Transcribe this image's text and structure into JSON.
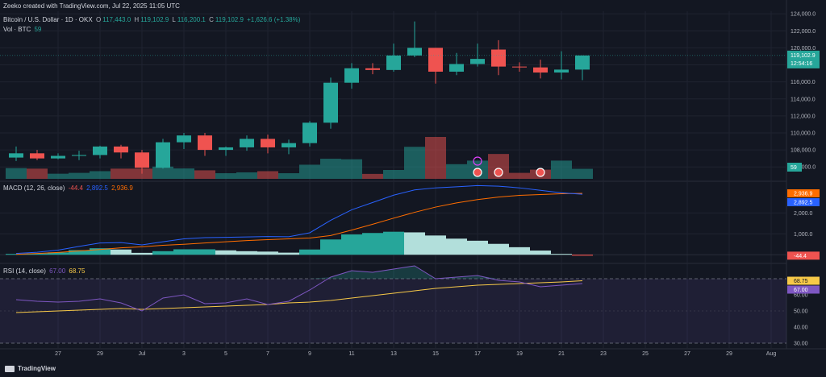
{
  "header": {
    "attribution": "Zeeko created with TradingView.com, Jul 22, 2025 11:05 UTC",
    "symbol": "Bitcoin / U.S. Dollar · 1D · OKX",
    "o_label": "O",
    "o_value": "117,443.0",
    "h_label": "H",
    "h_value": "119,102.9",
    "l_label": "L",
    "l_value": "116,200.1",
    "c_label": "C",
    "c_value": "119,102.9",
    "change": "+1,626.6 (+1.38%)",
    "vol_label": "Vol · BTC",
    "vol_value": "59"
  },
  "macd_header": {
    "label": "MACD (12, 26, close)",
    "v1": "-44.4",
    "v2": "2,892.5",
    "v3": "2,936.9"
  },
  "rsi_header": {
    "label": "RSI (14, close)",
    "v1": "67.00",
    "v2": "68.75"
  },
  "footer": {
    "brand": "TradingView"
  },
  "colors": {
    "up": "#26a69a",
    "down": "#ef5350",
    "macd": "#2962ff",
    "signal": "#ff6d00",
    "rsi": "#7e57c2",
    "rsi_ma": "#f7c948",
    "bg": "#131722"
  },
  "chart_data": [
    {
      "type": "candlestick",
      "title": "Bitcoin / U.S. Dollar · 1D · OKX",
      "x_tick_labels": [
        "27",
        "29",
        "Jul",
        "3",
        "5",
        "7",
        "9",
        "11",
        "13",
        "15",
        "17",
        "19",
        "21",
        "23",
        "25",
        "27",
        "29",
        "Aug"
      ],
      "y_ticks": [
        106000,
        108000,
        110000,
        112000,
        114000,
        116000,
        118000,
        120000,
        122000,
        124000
      ],
      "y_tick_labels": [
        "106,000.0",
        "108,000.0",
        "110,000.0",
        "112,000.0",
        "114,000.0",
        "116,000.0",
        "118,000.0",
        "120,000.0",
        "122,000.0",
        "124,000.0"
      ],
      "ylim": [
        104600,
        124300
      ],
      "last_price_label": "119,102.9",
      "countdown_label": "12:54:16",
      "volume_label": "59",
      "dates": [
        "Jun 25",
        "Jun 26",
        "Jun 27",
        "Jun 28",
        "Jun 29",
        "Jun 30",
        "Jul 1",
        "Jul 2",
        "Jul 3",
        "Jul 4",
        "Jul 5",
        "Jul 6",
        "Jul 7",
        "Jul 8",
        "Jul 9",
        "Jul 10",
        "Jul 11",
        "Jul 12",
        "Jul 13",
        "Jul 14",
        "Jul 15",
        "Jul 16",
        "Jul 17",
        "Jul 18",
        "Jul 19",
        "Jul 20",
        "Jul 21",
        "Jul 22"
      ],
      "open": [
        107100,
        107600,
        107000,
        107300,
        107400,
        108400,
        107700,
        105900,
        108900,
        109700,
        108000,
        108300,
        109300,
        108300,
        108800,
        111200,
        115900,
        117600,
        117400,
        119100,
        120000,
        117200,
        118100,
        119800,
        117800,
        117700,
        117100,
        117443
      ],
      "high": [
        108400,
        108000,
        107600,
        107900,
        108500,
        108600,
        108000,
        109300,
        110000,
        110000,
        108400,
        109700,
        109800,
        109200,
        111400,
        116500,
        118200,
        118200,
        120500,
        123100,
        120000,
        119400,
        120500,
        120900,
        118300,
        118600,
        119600,
        119103
      ],
      "low": [
        106700,
        106800,
        106900,
        106800,
        107000,
        107000,
        105200,
        105800,
        108100,
        107300,
        107300,
        107900,
        107600,
        107500,
        108400,
        110500,
        115200,
        116900,
        117200,
        118900,
        115800,
        116800,
        117800,
        116800,
        117200,
        116400,
        116300,
        116200
      ],
      "close": [
        107600,
        107000,
        107300,
        107400,
        108400,
        107700,
        105900,
        108900,
        109700,
        108000,
        108300,
        109300,
        108300,
        108800,
        111200,
        115900,
        117600,
        117400,
        119100,
        120000,
        117200,
        118100,
        118700,
        117800,
        117700,
        117100,
        117443,
        119103
      ],
      "volume": [
        6.3,
        6.0,
        3.0,
        3.5,
        4.5,
        6.0,
        6.0,
        7.2,
        6.1,
        5.0,
        3.3,
        3.8,
        4.5,
        3.3,
        8.3,
        11.8,
        11.5,
        2.9,
        5.2,
        18.8,
        24.6,
        8.6,
        10.7,
        14.6,
        3.5,
        5.4,
        10.7,
        5.9
      ]
    },
    {
      "type": "line+histogram",
      "title": "MACD (12, 26, close)",
      "y_tick_labels": [
        "1,000.0",
        "2,000.0"
      ],
      "y_ticks": [
        1000,
        2000
      ],
      "ylim": [
        -300,
        3400
      ],
      "series": [
        {
          "name": "MACD",
          "values": [
            60,
            120,
            220,
            400,
            560,
            580,
            470,
            620,
            760,
            820,
            830,
            850,
            870,
            860,
            1050,
            1650,
            2150,
            2500,
            2850,
            3100,
            3200,
            3250,
            3310,
            3280,
            3200,
            3080,
            2960,
            2892.5
          ]
        },
        {
          "name": "Signal",
          "values": [
            20,
            60,
            110,
            180,
            250,
            330,
            380,
            450,
            500,
            560,
            620,
            680,
            720,
            760,
            800,
            920,
            1180,
            1460,
            1750,
            2030,
            2280,
            2480,
            2640,
            2760,
            2840,
            2880,
            2920,
            2936.9
          ]
        },
        {
          "name": "Histogram",
          "values": [
            40,
            60,
            110,
            220,
            310,
            250,
            90,
            170,
            260,
            260,
            210,
            170,
            150,
            100,
            250,
            730,
            970,
            1040,
            1100,
            1070,
            920,
            770,
            670,
            520,
            360,
            200,
            40,
            -44.4
          ]
        }
      ],
      "last_values": [
        "2,936.9",
        "2,892.5",
        "-44.4"
      ]
    },
    {
      "type": "line",
      "title": "RSI (14, close)",
      "y_tick_labels": [
        "30.00",
        "40.00",
        "50.00",
        "60.00"
      ],
      "y_ticks": [
        30,
        40,
        50,
        60
      ],
      "ylim": [
        28,
        78
      ],
      "bands": [
        30,
        70
      ],
      "series": [
        {
          "name": "RSI",
          "values": [
            57,
            56,
            55.5,
            56,
            57.5,
            55,
            50,
            58,
            60,
            54.5,
            55,
            57.5,
            54,
            56,
            63,
            71,
            75,
            74,
            76,
            78,
            70,
            71,
            72,
            69,
            68,
            65,
            66,
            67.0
          ]
        },
        {
          "name": "RSI MA",
          "values": [
            49,
            49.5,
            50,
            50.5,
            51,
            51.5,
            51,
            51.5,
            52,
            52.5,
            53,
            53.5,
            54,
            55,
            55.5,
            56.5,
            58,
            59.5,
            61,
            62.5,
            64,
            65,
            66,
            66.5,
            67,
            67.5,
            68,
            68.75
          ]
        }
      ],
      "last_values": [
        "68.75",
        "67.00"
      ]
    }
  ]
}
